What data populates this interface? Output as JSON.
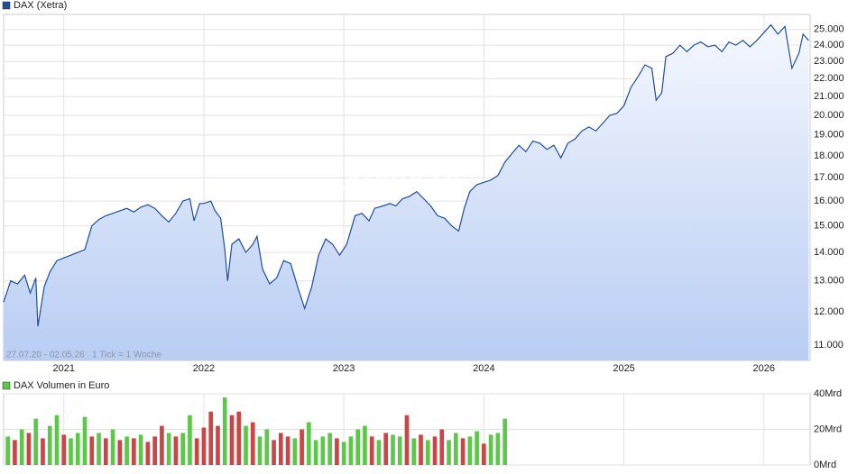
{
  "chart_data": [
    {
      "type": "line",
      "legend": "DAX (Xetra)",
      "color": "#1f4e9e",
      "watermark": "ARIVA.DE",
      "annotation": "27.07.20 - 02.05.26   1 Tick = 1 Woche",
      "log_scale": true,
      "grid": true,
      "x": [
        2020.57,
        2020.62,
        2020.67,
        2020.72,
        2020.76,
        2020.8,
        2020.815,
        2020.86,
        2020.9,
        2020.95,
        2021.0,
        2021.05,
        2021.1,
        2021.15,
        2021.2,
        2021.25,
        2021.3,
        2021.35,
        2021.4,
        2021.45,
        2021.5,
        2021.55,
        2021.6,
        2021.65,
        2021.7,
        2021.75,
        2021.8,
        2021.85,
        2021.9,
        2021.93,
        2021.97,
        2022.0,
        2022.05,
        2022.08,
        2022.12,
        2022.15,
        2022.17,
        2022.2,
        2022.25,
        2022.3,
        2022.35,
        2022.38,
        2022.42,
        2022.47,
        2022.52,
        2022.57,
        2022.62,
        2022.67,
        2022.72,
        2022.77,
        2022.82,
        2022.87,
        2022.92,
        2022.97,
        2023.02,
        2023.08,
        2023.13,
        2023.18,
        2023.22,
        2023.28,
        2023.33,
        2023.37,
        2023.42,
        2023.47,
        2023.52,
        2023.57,
        2023.62,
        2023.67,
        2023.72,
        2023.77,
        2023.82,
        2023.86,
        2023.9,
        2023.95,
        2024.0,
        2024.05,
        2024.1,
        2024.15,
        2024.2,
        2024.25,
        2024.3,
        2024.35,
        2024.4,
        2024.45,
        2024.5,
        2024.55,
        2024.6,
        2024.65,
        2024.7,
        2024.75,
        2024.8,
        2024.85,
        2024.9,
        2024.95,
        2025.0,
        2025.05,
        2025.1,
        2025.15,
        2025.2,
        2025.23,
        2025.27,
        2025.3,
        2025.35,
        2025.4,
        2025.45,
        2025.5,
        2025.55,
        2025.6,
        2025.65,
        2025.7,
        2025.75,
        2025.8,
        2025.85,
        2025.9,
        2025.95,
        2026.0,
        2026.05,
        2026.1,
        2026.15,
        2026.2,
        2026.25,
        2026.28,
        2026.32
      ],
      "values": [
        12300,
        13000,
        12900,
        13200,
        12600,
        13100,
        11550,
        12800,
        13300,
        13700,
        13800,
        13900,
        14000,
        14100,
        15000,
        15250,
        15400,
        15500,
        15600,
        15700,
        15550,
        15750,
        15850,
        15700,
        15400,
        15150,
        15500,
        16000,
        16100,
        15200,
        15900,
        15900,
        16000,
        15600,
        15300,
        14100,
        13000,
        14300,
        14500,
        14000,
        14300,
        14600,
        13400,
        12900,
        13100,
        13700,
        13600,
        12800,
        12100,
        12800,
        13900,
        14500,
        14300,
        13900,
        14300,
        15400,
        15500,
        15200,
        15700,
        15800,
        15900,
        15800,
        16100,
        16200,
        16400,
        16100,
        15800,
        15400,
        15300,
        15000,
        14800,
        15700,
        16400,
        16700,
        16800,
        16900,
        17100,
        17700,
        18100,
        18500,
        18200,
        18700,
        18600,
        18300,
        18500,
        17900,
        18600,
        18800,
        19200,
        19400,
        19200,
        19600,
        20000,
        20100,
        20500,
        21500,
        22100,
        22800,
        22600,
        20800,
        21200,
        23300,
        23500,
        24000,
        23600,
        24000,
        24200,
        23900,
        24000,
        23600,
        24200,
        24000,
        24300,
        23900,
        24300,
        24800,
        25300,
        24700,
        25200,
        22600,
        23500,
        24700,
        24300
      ],
      "xlim": [
        2020.57,
        2026.33
      ],
      "xticks": [
        2021,
        2022,
        2023,
        2024,
        2025,
        2026
      ],
      "ylim": [
        10570,
        26000
      ],
      "yticks": [
        {
          "value": 11000,
          "label": "11.000"
        },
        {
          "value": 12000,
          "label": "12.000"
        },
        {
          "value": 13000,
          "label": "13.000"
        },
        {
          "value": 14000,
          "label": "14.000"
        },
        {
          "value": 15000,
          "label": "15.000"
        },
        {
          "value": 16000,
          "label": "16.000"
        },
        {
          "value": 17000,
          "label": "17.000"
        },
        {
          "value": 18000,
          "label": "18.000"
        },
        {
          "value": 19000,
          "label": "19.000"
        },
        {
          "value": 20000,
          "label": "20.000"
        },
        {
          "value": 21000,
          "label": "21.000"
        },
        {
          "value": 22000,
          "label": "22.000"
        },
        {
          "value": 23000,
          "label": "23.000"
        },
        {
          "value": 24000,
          "label": "24.000"
        },
        {
          "value": 25000,
          "label": "25.000"
        }
      ]
    },
    {
      "type": "bar",
      "legend": "DAX Volumen in Euro",
      "color": "#5cc84a",
      "grid": true,
      "x": [
        2020.6,
        2020.65,
        2020.7,
        2020.75,
        2020.8,
        2020.85,
        2020.9,
        2020.95,
        2021.0,
        2021.05,
        2021.1,
        2021.15,
        2021.2,
        2021.25,
        2021.3,
        2021.35,
        2021.4,
        2021.45,
        2021.5,
        2021.55,
        2021.6,
        2021.65,
        2021.7,
        2021.75,
        2021.8,
        2021.85,
        2021.9,
        2021.95,
        2022.0,
        2022.05,
        2022.1,
        2022.15,
        2022.2,
        2022.25,
        2022.3,
        2022.35,
        2022.4,
        2022.45,
        2022.5,
        2022.55,
        2022.6,
        2022.65,
        2022.7,
        2022.75,
        2022.8,
        2022.85,
        2022.9,
        2022.95,
        2023.0,
        2023.05,
        2023.1,
        2023.15,
        2023.2,
        2023.25,
        2023.3,
        2023.35,
        2023.4,
        2023.45,
        2023.5,
        2023.55,
        2023.6,
        2023.65,
        2023.7,
        2023.75,
        2023.8,
        2023.85,
        2023.9,
        2023.95,
        2024.0,
        2024.05,
        2024.1,
        2024.15
      ],
      "values": [
        16,
        14,
        20,
        18,
        26,
        15,
        22,
        28,
        17,
        15,
        18,
        27,
        16,
        18,
        15,
        20,
        14,
        16,
        15,
        17,
        13,
        16,
        22,
        18,
        16,
        18,
        28,
        15,
        21,
        30,
        22,
        38,
        28,
        30,
        22,
        24,
        16,
        20,
        14,
        18,
        16,
        15,
        20,
        24,
        14,
        16,
        18,
        15,
        13,
        16,
        20,
        22,
        16,
        14,
        18,
        17,
        16,
        28,
        15,
        17,
        14,
        16,
        20,
        14,
        18,
        15,
        16,
        19,
        12,
        17,
        18,
        26
      ],
      "colors": [
        "#5cc84a",
        "#cc4444",
        "#5cc84a",
        "#cc4444",
        "#5cc84a",
        "#cc4444",
        "#5cc84a",
        "#5cc84a",
        "#cc4444",
        "#5cc84a",
        "#5cc84a",
        "#5cc84a",
        "#cc4444",
        "#5cc84a",
        "#cc4444",
        "#5cc84a",
        "#cc4444",
        "#5cc84a",
        "#cc4444",
        "#5cc84a",
        "#cc4444",
        "#cc4444",
        "#cc4444",
        "#5cc84a",
        "#cc4444",
        "#5cc84a",
        "#5cc84a",
        "#cc4444",
        "#cc4444",
        "#cc4444",
        "#cc4444",
        "#5cc84a",
        "#cc4444",
        "#cc4444",
        "#5cc84a",
        "#cc4444",
        "#5cc84a",
        "#5cc84a",
        "#cc4444",
        "#cc4444",
        "#cc4444",
        "#5cc84a",
        "#cc4444",
        "#5cc84a",
        "#5cc84a",
        "#5cc84a",
        "#5cc84a",
        "#cc4444",
        "#5cc84a",
        "#5cc84a",
        "#5cc84a",
        "#5cc84a",
        "#cc4444",
        "#5cc84a",
        "#cc4444",
        "#5cc84a",
        "#5cc84a",
        "#cc4444",
        "#5cc84a",
        "#cc4444",
        "#5cc84a",
        "#cc4444",
        "#cc4444",
        "#5cc84a",
        "#5cc84a",
        "#cc4444",
        "#5cc84a",
        "#5cc84a",
        "#cc4444",
        "#5cc84a",
        "#5cc84a",
        "#5cc84a"
      ],
      "xlim": [
        2020.57,
        2026.33
      ],
      "xticks": [
        2021,
        2022,
        2023,
        2024,
        2025,
        2026
      ],
      "ylim": [
        0,
        40
      ],
      "yticks": [
        {
          "value": 0,
          "label": "0Mrd"
        },
        {
          "value": 20,
          "label": "20Mrd"
        },
        {
          "value": 40,
          "label": "40Mrd"
        }
      ]
    }
  ]
}
